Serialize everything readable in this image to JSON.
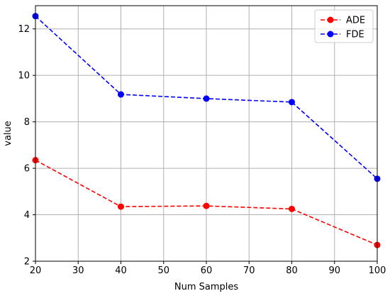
{
  "chart_data": {
    "type": "line",
    "title": "",
    "xlabel": "Num Samples",
    "ylabel": "value",
    "x": [
      20,
      40,
      60,
      80,
      100
    ],
    "xlim": [
      20,
      100
    ],
    "ylim": [
      2,
      13
    ],
    "xticks": [
      "20",
      "30",
      "40",
      "50",
      "60",
      "70",
      "80",
      "90",
      "100"
    ],
    "yticks": [
      "2",
      "4",
      "6",
      "8",
      "10",
      "12"
    ],
    "grid": true,
    "legend_position": "top-right",
    "series": [
      {
        "name": "ADE",
        "color": "#ff0000",
        "line_style": "dashed",
        "marker": "circle",
        "values": [
          6.35,
          4.35,
          4.38,
          4.25,
          2.7
        ]
      },
      {
        "name": "FDE",
        "color": "#0000ff",
        "line_style": "dashed",
        "marker": "circle",
        "values": [
          12.55,
          9.18,
          9.0,
          8.85,
          5.55
        ]
      }
    ]
  }
}
